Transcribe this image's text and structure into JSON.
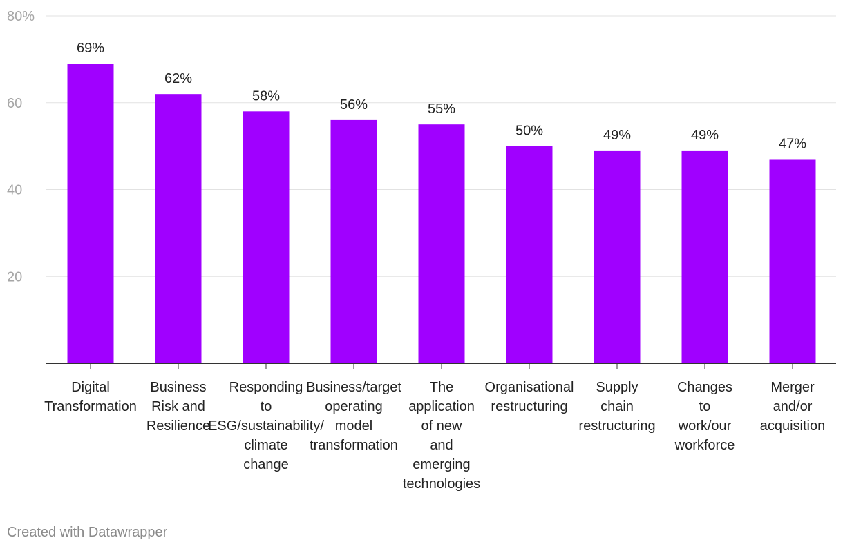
{
  "chart_data": {
    "type": "bar",
    "categories": [
      [
        "Digital",
        "Transformation"
      ],
      [
        "Business",
        "Risk and",
        "Resilience"
      ],
      [
        "Responding",
        "to",
        "ESG/sustainability/",
        "climate",
        "change"
      ],
      [
        "Business/target",
        "operating",
        "model",
        "transformation"
      ],
      [
        "The",
        "application",
        "of new",
        "and",
        "emerging",
        "technologies"
      ],
      [
        "Organisational",
        "restructuring"
      ],
      [
        "Supply",
        "chain",
        "restructuring"
      ],
      [
        "Changes",
        "to",
        "work/our",
        "workforce"
      ],
      [
        "Merger",
        "and/or",
        "acquisition"
      ]
    ],
    "values": [
      69,
      62,
      58,
      56,
      55,
      50,
      49,
      49,
      47
    ],
    "value_labels": [
      "69%",
      "62%",
      "58%",
      "56%",
      "55%",
      "50%",
      "49%",
      "49%",
      "47%"
    ],
    "ylim": [
      0,
      80
    ],
    "yticks": [
      20,
      40,
      60,
      80
    ],
    "ytick_labels": [
      "20",
      "40",
      "60",
      "80%"
    ],
    "bar_color": "#a000ff",
    "title": "",
    "xlabel": "",
    "ylabel": ""
  },
  "footer": {
    "credit": "Created with Datawrapper"
  }
}
